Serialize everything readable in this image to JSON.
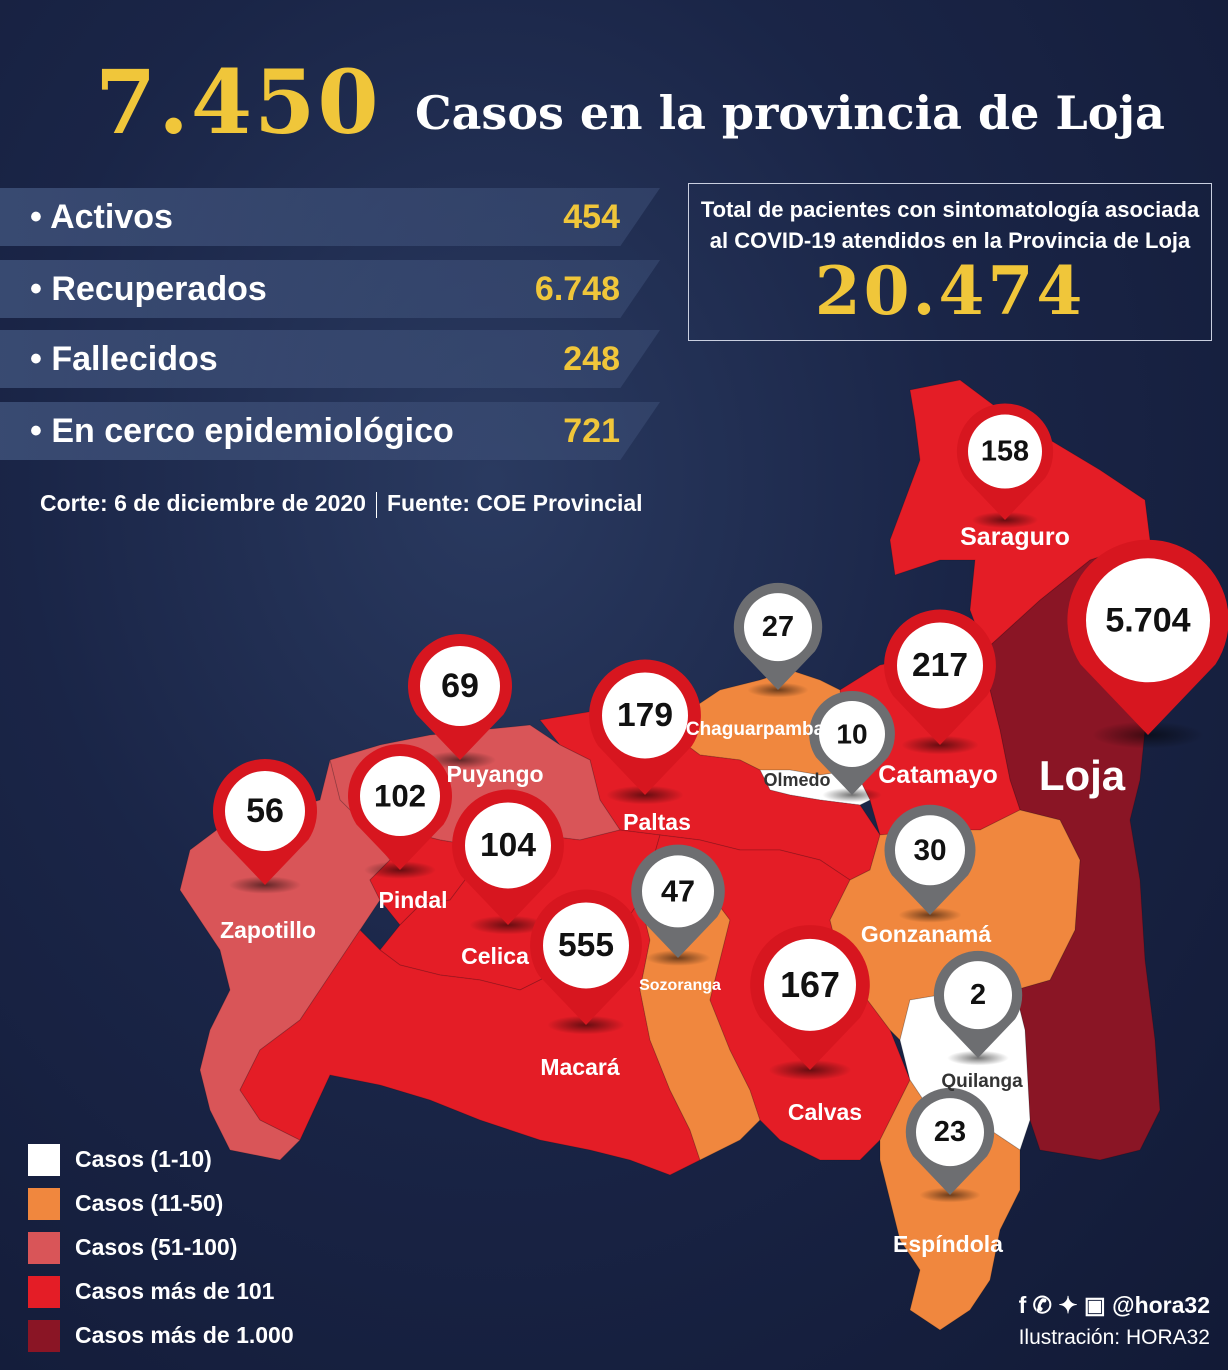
{
  "header": {
    "big_number": "7.450",
    "title": "Casos en la provincia de Loja"
  },
  "stats": [
    {
      "label": "Activos",
      "value": "454"
    },
    {
      "label": "Recuperados",
      "value": "6.748"
    },
    {
      "label": "Fallecidos",
      "value": "248"
    },
    {
      "label": "En cerco epidemiológico",
      "value": "721"
    }
  ],
  "source": {
    "corte": "Corte:  6 de diciembre de 2020",
    "fuente": "Fuente: COE Provincial"
  },
  "total_box": {
    "text": "Total de pacientes con sintomatología asociada al COVID-19 atendidos en la Provincia de Loja",
    "number": "20.474"
  },
  "colors": {
    "c1_10": "#ffffff",
    "c11_50": "#f0873e",
    "c51_100": "#d95558",
    "c101": "#e41d26",
    "c1000": "#8a1525",
    "pin_red": "#d7161f",
    "pin_gray": "#6d6e71",
    "accent": "#f0c63a"
  },
  "cantons": [
    {
      "name": "Saraguro",
      "cases": "158",
      "category": "c101"
    },
    {
      "name": "Loja",
      "cases": "5.704",
      "category": "c1000"
    },
    {
      "name": "Chaguarpamba",
      "cases": "27",
      "category": "c11_50"
    },
    {
      "name": "Olmedo",
      "cases": "10",
      "category": "c1_10"
    },
    {
      "name": "Catamayo",
      "cases": "217",
      "category": "c101"
    },
    {
      "name": "Puyango",
      "cases": "69",
      "category": "c51_100"
    },
    {
      "name": "Paltas",
      "cases": "179",
      "category": "c101"
    },
    {
      "name": "Pindal",
      "cases": "102",
      "category": "c101"
    },
    {
      "name": "Zapotillo",
      "cases": "56",
      "category": "c51_100"
    },
    {
      "name": "Celica",
      "cases": "104",
      "category": "c101"
    },
    {
      "name": "Sozoranga",
      "cases": "47",
      "category": "c11_50"
    },
    {
      "name": "Macará",
      "cases": "555",
      "category": "c101"
    },
    {
      "name": "Gonzanamá",
      "cases": "30",
      "category": "c11_50"
    },
    {
      "name": "Calvas",
      "cases": "167",
      "category": "c101"
    },
    {
      "name": "Quilanga",
      "cases": "2",
      "category": "c1_10"
    },
    {
      "name": "Espíndola",
      "cases": "23",
      "category": "c11_50"
    }
  ],
  "legend": [
    {
      "label": "Casos (1-10)",
      "color": "#ffffff"
    },
    {
      "label": "Casos (11-50)",
      "color": "#f0873e"
    },
    {
      "label": "Casos (51-100)",
      "color": "#d95558"
    },
    {
      "label": "Casos más de 101",
      "color": "#e41d26"
    },
    {
      "label": "Casos más de 1.000",
      "color": "#8a1525"
    }
  ],
  "social": {
    "icons": [
      "facebook-icon",
      "whatsapp-icon",
      "twitter-icon",
      "instagram-icon"
    ],
    "handle": "@hora32",
    "credit": "Ilustración: HORA32"
  }
}
